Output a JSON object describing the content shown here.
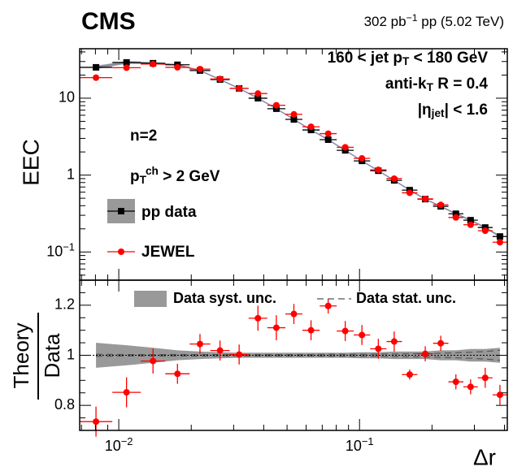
{
  "header": {
    "experiment": "CMS",
    "lumi": [
      {
        "text": "302 pb"
      },
      {
        "sup": "−1"
      },
      {
        "text": " pp (5.02 TeV)"
      }
    ]
  },
  "chart_data": [
    {
      "type": "scatter",
      "ylabel": "EEC",
      "xlog": true,
      "ylog": true,
      "xlim": [
        0.00688,
        0.411
      ],
      "ylim": [
        0.043,
        44
      ],
      "yticks": [
        {
          "value": 0.1,
          "label": "10",
          "sup": "−1"
        },
        1,
        10
      ],
      "yminor": [
        0.05,
        0.06,
        0.07,
        0.08,
        0.09,
        0.2,
        0.3,
        0.4,
        0.5,
        0.6,
        0.7,
        0.8,
        0.9,
        2,
        3,
        4,
        5,
        6,
        7,
        8,
        9,
        20,
        30,
        40
      ],
      "bins": [
        0.00688,
        0.0094,
        0.01234,
        0.0156,
        0.0197,
        0.024,
        0.0289,
        0.0346,
        0.0414,
        0.0492,
        0.0579,
        0.0683,
        0.0804,
        0.0946,
        0.1107,
        0.1294,
        0.15,
        0.174,
        0.202,
        0.234,
        0.27,
        0.31,
        0.357,
        0.411
      ],
      "annotations": [
        [
          {
            "text": "160 < jet p"
          },
          {
            "sub": "T"
          },
          {
            "text": " < 180 GeV"
          }
        ],
        [
          {
            "text": "anti-k"
          },
          {
            "sub": "T"
          },
          {
            "text": " R = 0.4"
          }
        ],
        [
          {
            "text": "|η"
          },
          {
            "sub": "jet"
          },
          {
            "text": "| < 1.6"
          }
        ],
        [
          {
            "text": "n=2"
          }
        ],
        [
          {
            "text": "p"
          },
          {
            "sub": "T"
          },
          {
            "sup": "ch"
          },
          {
            "text": " > 2 GeV"
          }
        ]
      ],
      "legend": "left",
      "series": [
        {
          "name": "pp data",
          "color": "#000000",
          "marker": "square",
          "band_color": "#999999",
          "values": [
            25.2,
            29.2,
            28.5,
            27.2,
            22.9,
            17.5,
            13.4,
            10,
            7.3,
            5.3,
            3.86,
            2.89,
            2.1,
            1.53,
            1.14,
            0.853,
            0.637,
            0.487,
            0.392,
            0.314,
            0.259,
            0.208,
            0.159
          ]
        },
        {
          "name": "JEWEL",
          "color": "#ff0000",
          "marker": "circle",
          "values": [
            18.5,
            24.9,
            27.8,
            25.2,
            23.9,
            17.8,
            13.4,
            11.5,
            8.1,
            6.17,
            4.25,
            3.46,
            2.3,
            1.65,
            1.17,
            0.9,
            0.588,
            0.49,
            0.41,
            0.281,
            0.226,
            0.189,
            0.134
          ]
        }
      ]
    },
    {
      "type": "ratio",
      "ylabel": [
        "Theory",
        "Data"
      ],
      "xlabel": "Δr",
      "xticks": [
        {
          "value": 0.01,
          "label": "10",
          "sup": "−2"
        },
        {
          "value": 0.1,
          "label": "10",
          "sup": "−1"
        }
      ],
      "xminor": [
        0.007,
        0.008,
        0.009,
        0.02,
        0.03,
        0.04,
        0.05,
        0.06,
        0.07,
        0.08,
        0.09,
        0.2,
        0.3,
        0.4
      ],
      "ylim": [
        0.7,
        1.3
      ],
      "yticks": [
        0.8,
        1,
        1.2
      ],
      "yminor": [
        0.75,
        0.85,
        0.9,
        0.95,
        1.05,
        1.1,
        1.15,
        1.25
      ],
      "reference": 1,
      "series": [
        {
          "name": "Data syst. unc.",
          "color": "#999999",
          "values": [
            0.05,
            0.04,
            0.03,
            0.02,
            0.015,
            0.012,
            0.01,
            0.01,
            0.01,
            0.01,
            0.01,
            0.01,
            0.01,
            0.012,
            0.012,
            0.015,
            0.015,
            0.015,
            0.02,
            0.02,
            0.025,
            0.025,
            0.03
          ]
        },
        {
          "name": "Data stat. unc.",
          "color": "#555555",
          "values": [
            0.004,
            0.003,
            0.003,
            0.003,
            0.003,
            0.003,
            0.003,
            0.003,
            0.003,
            0.003,
            0.003,
            0.004,
            0.004,
            0.004,
            0.005,
            0.005,
            0.006,
            0.007,
            0.008,
            0.01,
            0.012,
            0.015,
            0.02
          ]
        },
        {
          "color": "#ff0000",
          "values": [
            0.735,
            0.852,
            0.977,
            0.926,
            1.045,
            1.019,
            1.003,
            1.148,
            1.11,
            1.165,
            1.1,
            1.197,
            1.097,
            1.081,
            1.026,
            1.055,
            0.923,
            1.006,
            1.048,
            0.894,
            0.874,
            0.91,
            0.842
          ],
          "errors": [
            0.06,
            0.06,
            0.05,
            0.04,
            0.04,
            0.04,
            0.04,
            0.05,
            0.05,
            0.04,
            0.04,
            0.03,
            0.04,
            0.04,
            0.04,
            0.04,
            0.02,
            0.03,
            0.03,
            0.03,
            0.03,
            0.04,
            0.04
          ]
        }
      ]
    }
  ]
}
